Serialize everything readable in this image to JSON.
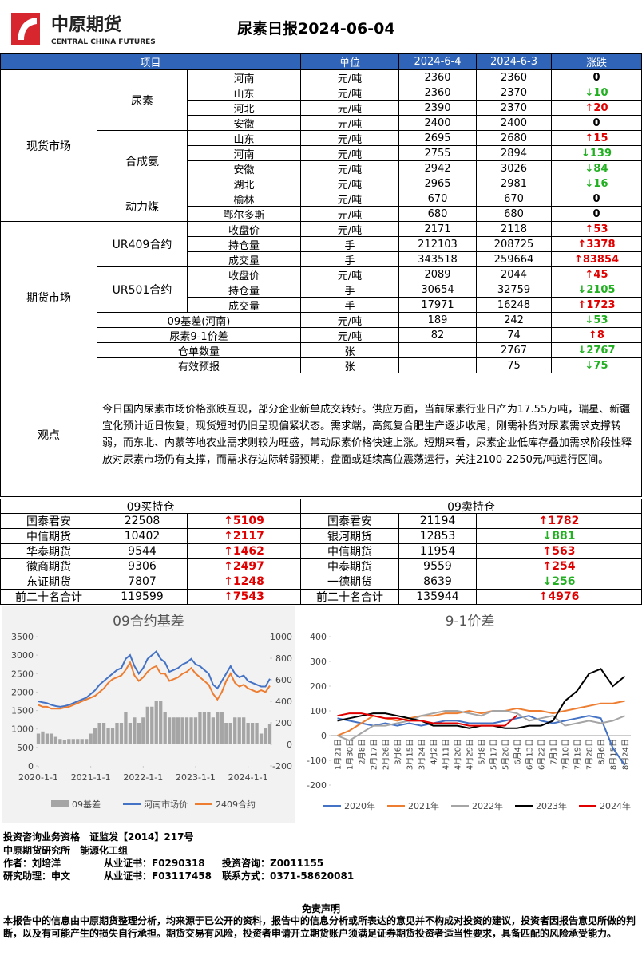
{
  "header": {
    "logo_cn": "中原期货",
    "logo_en": "CENTRAL CHINA FUTURES",
    "title": "尿素日报2024-06-04"
  },
  "table": {
    "columns": [
      "项目",
      "单位",
      "2024-6-4",
      "2024-6-3",
      "涨跌"
    ],
    "groups": [
      {
        "label": "现货市场",
        "subgroups": [
          {
            "label": "尿素",
            "rows": [
              [
                "河南",
                "元/吨",
                2360,
                2360,
                0
              ],
              [
                "山东",
                "元/吨",
                2360,
                2370,
                "↓10"
              ],
              [
                "河北",
                "元/吨",
                2390,
                2370,
                "↑20"
              ],
              [
                "安徽",
                "元/吨",
                2400,
                2400,
                0
              ]
            ]
          },
          {
            "label": "合成氨",
            "rows": [
              [
                "山东",
                "元/吨",
                2695,
                2680,
                "↑15"
              ],
              [
                "河南",
                "元/吨",
                2755,
                2894,
                "↓139"
              ],
              [
                "安徽",
                "元/吨",
                2942,
                3026,
                "↓84"
              ],
              [
                "湖北",
                "元/吨",
                2965,
                2981,
                "↓16"
              ]
            ]
          },
          {
            "label": "动力煤",
            "rows": [
              [
                "榆林",
                "元/吨",
                670,
                670,
                0
              ],
              [
                "鄂尔多斯",
                "元/吨",
                680,
                680,
                0
              ]
            ]
          }
        ],
        "rows": []
      },
      {
        "label": "期货市场",
        "subgroups": [
          {
            "label": "UR409合约",
            "rows": [
              [
                "收盘价",
                "元/吨",
                2171,
                2118,
                "↑53"
              ],
              [
                "持仓量",
                "手",
                212103,
                208725,
                "↑3378"
              ],
              [
                "成交量",
                "手",
                343518,
                259664,
                "↑83854"
              ]
            ]
          },
          {
            "label": "UR501合约",
            "rows": [
              [
                "收盘价",
                "元/吨",
                2089,
                2044,
                "↑45"
              ],
              [
                "持仓量",
                "手",
                30654,
                32759,
                "↓2105"
              ],
              [
                "成交量",
                "手",
                17971,
                16248,
                "↑1723"
              ]
            ]
          }
        ],
        "rows": [
          [
            "09基差(河南)",
            "元/吨",
            189,
            242,
            "↓53"
          ],
          [
            "尿素9-1价差",
            "元/吨",
            82,
            74,
            "↑8"
          ],
          [
            "仓单数量",
            "张",
            null,
            2767,
            "↓2767"
          ],
          [
            "有效预报",
            "张",
            null,
            75,
            "↓75"
          ]
        ]
      }
    ]
  },
  "opinion": {
    "label": "观点",
    "text": "今日国内尿素市场价格涨跌互现，部分企业新单成交转好。供应方面，当前尿素行业日产为17.55万吨，瑞星、新疆宜化预计近日恢复，现货短时仍旧呈现偏紧状态。需求端，高氮复合肥生产逐步收尾，刚需补货对尿素需求支撑转弱，而东北、内蒙等地农业需求则较为旺盛，带动尿素价格快速上涨。短期来看，尿素企业低库存叠加需求阶段性释放对尿素市场仍有支撑，而需求存边际转弱预期，盘面或延续高位震荡运行，关注2100-2250元/吨运行区间。"
  },
  "positions": {
    "buy": {
      "title": "09买持仓",
      "rows": [
        [
          "国泰君安",
          22508,
          "↑5109"
        ],
        [
          "中信期货",
          10402,
          "↑2117"
        ],
        [
          "华泰期货",
          9544,
          "↑1462"
        ],
        [
          "徽商期货",
          9306,
          "↑2497"
        ],
        [
          "东证期货",
          7807,
          "↑1248"
        ],
        [
          "前二十名合计",
          119599,
          "↑7543"
        ]
      ]
    },
    "sell": {
      "title": "09卖持仓",
      "rows": [
        [
          "国泰君安",
          21194,
          "↑1782"
        ],
        [
          "银河期货",
          12853,
          "↓881"
        ],
        [
          "中信期货",
          11954,
          "↑563"
        ],
        [
          "中泰期货",
          9559,
          "↑254"
        ],
        [
          "一德期货",
          8639,
          "↓256"
        ],
        [
          "前二十名合计",
          135944,
          "↑4976"
        ]
      ]
    }
  },
  "chart_data": [
    {
      "type": "line",
      "title": "09合约基差",
      "grid": false,
      "x": [
        "2020-1-1",
        "2020-2-1",
        "2020-3-1",
        "2020-4-1",
        "2020-5-1",
        "2020-6-1",
        "2020-7-1",
        "2020-8-1",
        "2020-9-1",
        "2020-10-1",
        "2020-11-1",
        "2020-12-1",
        "2021-1-1",
        "2021-2-1",
        "2021-3-1",
        "2021-4-1",
        "2021-5-1",
        "2021-6-1",
        "2021-7-1",
        "2021-8-1",
        "2021-9-1",
        "2021-10-1",
        "2021-11-1",
        "2021-12-1",
        "2022-1-1",
        "2022-2-1",
        "2022-3-1",
        "2022-4-1",
        "2022-5-1",
        "2022-6-1",
        "2022-7-1",
        "2022-8-1",
        "2022-9-1",
        "2022-10-1",
        "2022-11-1",
        "2022-12-1",
        "2023-1-1",
        "2023-2-1",
        "2023-3-1",
        "2023-4-1",
        "2023-5-1",
        "2023-6-1",
        "2023-7-1",
        "2023-8-1",
        "2023-9-1",
        "2023-10-1",
        "2023-11-1",
        "2023-12-1",
        "2024-1-1",
        "2024-2-1",
        "2024-3-1",
        "2024-4-1",
        "2024-5-1",
        "2024-6-1"
      ],
      "xticks": [
        "2020-1-1",
        "2021-1-1",
        "2022-1-1",
        "2023-1-1",
        "2024-1-1"
      ],
      "ylim": [
        0,
        3500
      ],
      "yticks": [
        0,
        500,
        1000,
        1500,
        2000,
        2500,
        3000,
        3500
      ],
      "y2lim": [
        -200,
        1000
      ],
      "y2ticks": [
        -200,
        0,
        200,
        400,
        600,
        800,
        1000
      ],
      "series": [
        {
          "name": "09基差",
          "type": "bar",
          "axis": "y2",
          "color": "#a5a5a5",
          "values": [
            100,
            120,
            100,
            100,
            70,
            50,
            40,
            50,
            50,
            50,
            50,
            50,
            100,
            150,
            200,
            200,
            150,
            150,
            200,
            200,
            300,
            200,
            250,
            200,
            250,
            350,
            350,
            400,
            400,
            300,
            250,
            250,
            250,
            250,
            250,
            250,
            250,
            300,
            300,
            300,
            250,
            300,
            300,
            200,
            200,
            250,
            250,
            250,
            200,
            200,
            200,
            100,
            150,
            189
          ]
        },
        {
          "name": "河南市场价",
          "color": "#4472c4",
          "values": [
            1750,
            1720,
            1700,
            1650,
            1620,
            1600,
            1620,
            1650,
            1700,
            1750,
            1800,
            1850,
            1950,
            2050,
            2200,
            2300,
            2400,
            2500,
            2600,
            2650,
            2900,
            3000,
            2700,
            2500,
            2650,
            2900,
            3000,
            3100,
            2900,
            2800,
            2550,
            2600,
            2650,
            2750,
            2800,
            2900,
            2750,
            2700,
            2600,
            2500,
            2200,
            2100,
            2300,
            2500,
            2700,
            2500,
            2400,
            2450,
            2300,
            2250,
            2200,
            2150,
            2150,
            2360
          ]
        },
        {
          "name": "2409合约",
          "color": "#ed7d31",
          "values": [
            1650,
            1600,
            1600,
            1550,
            1550,
            1550,
            1580,
            1600,
            1650,
            1700,
            1750,
            1800,
            1850,
            1900,
            2000,
            2100,
            2250,
            2350,
            2400,
            2450,
            2600,
            2800,
            2450,
            2300,
            2400,
            2550,
            2650,
            2700,
            2500,
            2500,
            2300,
            2350,
            2400,
            2500,
            2550,
            2650,
            2500,
            2400,
            2300,
            2200,
            1950,
            1800,
            2000,
            2300,
            2500,
            2250,
            2150,
            2200,
            2100,
            2050,
            2000,
            2050,
            2000,
            2171
          ]
        }
      ]
    },
    {
      "type": "line",
      "title": "9-1价差",
      "grid": false,
      "categories": [
        "1月21日",
        "1月30日",
        "2月8日",
        "2月17日",
        "2月26日",
        "3月6日",
        "3月15日",
        "3月24日",
        "4月2日",
        "4月11日",
        "4月20日",
        "4月29日",
        "5月8日",
        "5月17日",
        "5月26日",
        "6月4日",
        "6月13日",
        "6月22日",
        "7月1日",
        "7月10日",
        "7月19日",
        "7月28日",
        "8月6日",
        "8月15日",
        "8月24日"
      ],
      "ylim": [
        -200,
        400
      ],
      "yticks": [
        -200,
        -100,
        0,
        100,
        200,
        300,
        400
      ],
      "series": [
        {
          "name": "2020年",
          "color": "#4472c4",
          "values": [
            70,
            60,
            50,
            40,
            50,
            40,
            50,
            40,
            50,
            60,
            60,
            50,
            50,
            50,
            60,
            70,
            80,
            60,
            50,
            60,
            70,
            80,
            70,
            -50,
            -120
          ]
        },
        {
          "name": "2021年",
          "color": "#ed7d31",
          "values": [
            0,
            20,
            50,
            80,
            70,
            60,
            70,
            80,
            80,
            90,
            90,
            100,
            90,
            100,
            100,
            110,
            100,
            100,
            90,
            100,
            110,
            120,
            130,
            130,
            140
          ]
        },
        {
          "name": "2022年",
          "color": "#a5a5a5",
          "values": [
            0,
            -20,
            10,
            40,
            40,
            50,
            60,
            80,
            90,
            100,
            100,
            90,
            80,
            100,
            100,
            90,
            60,
            70,
            80,
            40,
            50,
            60,
            50,
            60,
            80
          ]
        },
        {
          "name": "2023年",
          "color": "#000000",
          "values": [
            60,
            70,
            80,
            90,
            90,
            80,
            70,
            60,
            40,
            40,
            40,
            30,
            40,
            40,
            30,
            30,
            40,
            40,
            60,
            140,
            180,
            250,
            270,
            200,
            240
          ]
        },
        {
          "name": "2024年",
          "color": "#e00000",
          "values": [
            80,
            90,
            90,
            80,
            70,
            70,
            60,
            60,
            50,
            50,
            50,
            40,
            40,
            40,
            40,
            82,
            null,
            null,
            null,
            null,
            null,
            null,
            null,
            null,
            null
          ]
        }
      ]
    }
  ],
  "footer": {
    "qualification": "投资咨询业务资格　证监发【2014】217号",
    "department": "中原期货研究所　能源化工组",
    "author": "作者：刘培洋",
    "author_cert": "从业证书：F0290318",
    "author_consult": "投资咨询：Z0011155",
    "assistant": "研究助理：申文",
    "assistant_cert": "从业证书：F03117458",
    "contact": "联系方式：0371-58620081"
  },
  "disclaimer": {
    "title": "免责声明",
    "text": "本报告中的信息由中原期货整理分析，均来源于已公开的资料，报告中的信息分析或所表达的意见并不构成对投资的建议，投资者因报告意见所做的判断，以及有可能产生的损失自行承担。期货交易有风险，投资者申请开立期货账户须满足证券期货投资者适当性要求，具备匹配的风险承受能力。"
  }
}
